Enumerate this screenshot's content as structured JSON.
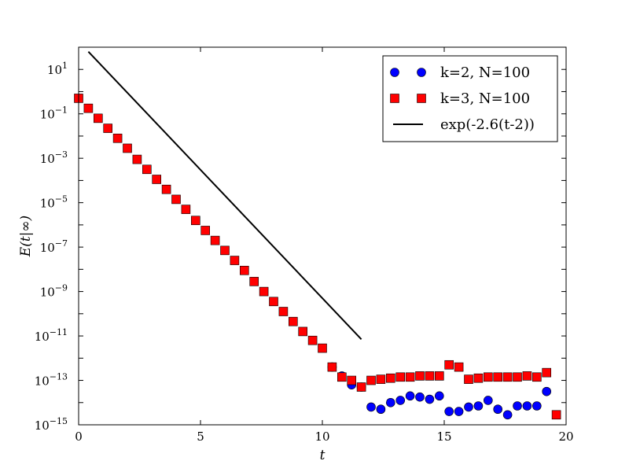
{
  "chart_data": {
    "type": "scatter",
    "xlabel": "t",
    "ylabel": "E(t|∞)",
    "xlim": [
      0,
      20
    ],
    "ylim_log10": [
      -15,
      2
    ],
    "yscale": "log",
    "grid": false,
    "legend_position": "top-right",
    "x_ticks": [
      0,
      5,
      10,
      15,
      20
    ],
    "y_ticks": [
      {
        "mantissa": "10",
        "exponent": "1",
        "log10": 1
      },
      {
        "mantissa": "10",
        "exponent": "−1",
        "log10": -1
      },
      {
        "mantissa": "10",
        "exponent": "−3",
        "log10": -3
      },
      {
        "mantissa": "10",
        "exponent": "−5",
        "log10": -5
      },
      {
        "mantissa": "10",
        "exponent": "−7",
        "log10": -7
      },
      {
        "mantissa": "10",
        "exponent": "−9",
        "log10": -9
      },
      {
        "mantissa": "10",
        "exponent": "−11",
        "log10": -11
      },
      {
        "mantissa": "10",
        "exponent": "−13",
        "log10": -13
      },
      {
        "mantissa": "10",
        "exponent": "−15",
        "log10": -15
      }
    ],
    "series": [
      {
        "name": "k=2, N=100",
        "marker": "circle",
        "color": "#0000ff",
        "x": [
          10.4,
          10.8,
          11.2,
          11.6,
          12.0,
          12.4,
          12.8,
          13.2,
          13.6,
          14.0,
          14.4,
          14.8,
          15.2,
          15.6,
          16.0,
          16.4,
          16.8,
          17.2,
          17.6,
          18.0,
          18.4,
          18.8,
          19.2
        ],
        "log10_y": [
          -12.4,
          -12.8,
          -13.2,
          -13.3,
          -14.2,
          -14.3,
          -14.0,
          -13.9,
          -13.7,
          -13.75,
          -13.85,
          -13.7,
          -14.4,
          -14.4,
          -14.2,
          -14.15,
          -13.9,
          -14.3,
          -14.55,
          -14.15,
          -14.15,
          -14.15,
          -13.5
        ]
      },
      {
        "name": "k=3, N=100",
        "marker": "square",
        "color": "#ff0000",
        "x": [
          0.0,
          0.4,
          0.8,
          1.2,
          1.6,
          2.0,
          2.4,
          2.8,
          3.2,
          3.6,
          4.0,
          4.4,
          4.8,
          5.2,
          5.6,
          6.0,
          6.4,
          6.8,
          7.2,
          7.6,
          8.0,
          8.4,
          8.8,
          9.2,
          9.6,
          10.0,
          10.4,
          10.8,
          11.2,
          11.6,
          12.0,
          12.4,
          12.8,
          13.2,
          13.6,
          14.0,
          14.4,
          14.8,
          15.2,
          15.6,
          16.0,
          16.4,
          16.8,
          17.2,
          17.6,
          18.0,
          18.4,
          18.8,
          19.2,
          19.6
        ],
        "log10_y": [
          -0.3,
          -0.75,
          -1.2,
          -1.65,
          -2.1,
          -2.55,
          -3.05,
          -3.5,
          -3.95,
          -4.4,
          -4.85,
          -5.3,
          -5.8,
          -6.25,
          -6.7,
          -7.15,
          -7.6,
          -8.05,
          -8.55,
          -9.0,
          -9.45,
          -9.9,
          -10.35,
          -10.8,
          -11.2,
          -11.55,
          -12.4,
          -12.85,
          -13.0,
          -13.3,
          -13.0,
          -12.95,
          -12.9,
          -12.85,
          -12.85,
          -12.8,
          -12.8,
          -12.8,
          -12.3,
          -12.4,
          -12.95,
          -12.9,
          -12.85,
          -12.85,
          -12.85,
          -12.85,
          -12.8,
          -12.85,
          -12.65,
          -14.55
        ]
      },
      {
        "name": "exp(-2.6(t-2))",
        "marker": "line",
        "color": "#000000",
        "x": [
          0.4,
          11.6
        ],
        "log10_y": [
          1.8,
          -11.15
        ]
      }
    ]
  }
}
